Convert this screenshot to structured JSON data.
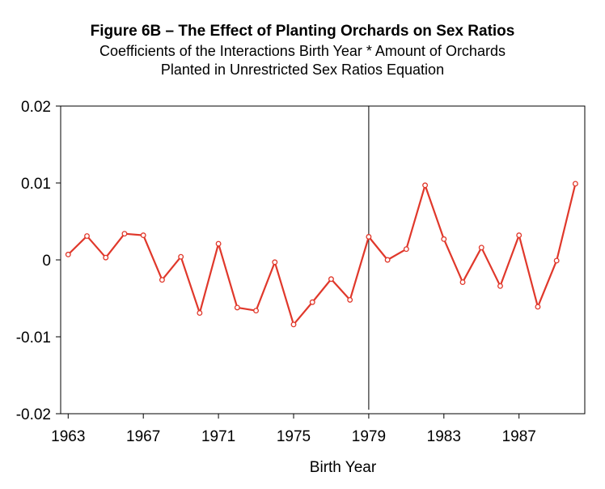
{
  "chart_data": {
    "type": "line",
    "title": "Figure 6B – The Effect of Planting Orchards on Sex Ratios",
    "subtitle_line1": "Coefficients of the Interactions Birth Year * Amount of Orchards",
    "subtitle_line2": "Planted in Unrestricted Sex Ratios Equation",
    "xlabel": "Birth Year",
    "ylabel": "",
    "xlim": [
      1962.6,
      1990.5
    ],
    "ylim": [
      -0.02,
      0.02
    ],
    "x_ticks": [
      1963,
      1967,
      1971,
      1975,
      1979,
      1983,
      1987
    ],
    "x_tick_labels": [
      "1963",
      "1967",
      "1971",
      "1975",
      "1979",
      "1983",
      "1987"
    ],
    "y_ticks": [
      0.02,
      0.01,
      0,
      -0.01,
      -0.02
    ],
    "y_tick_labels": [
      "0.02",
      "0.01",
      "0",
      "-0.01",
      "-0.02"
    ],
    "vertical_line_x": 1979,
    "grid": false,
    "series": [
      {
        "color": "#e0382b",
        "x": [
          1963,
          1964,
          1965,
          1966,
          1967,
          1968,
          1969,
          1970,
          1971,
          1972,
          1973,
          1974,
          1975,
          1976,
          1977,
          1978,
          1979,
          1980,
          1981,
          1982,
          1983,
          1984,
          1985,
          1986,
          1987,
          1988,
          1989,
          1990
        ],
        "values": [
          0.0007,
          0.0031,
          0.0003,
          0.0034,
          0.0032,
          -0.0026,
          0.0004,
          -0.0069,
          0.0021,
          -0.0062,
          -0.0066,
          -0.0003,
          -0.0084,
          -0.0055,
          -0.0025,
          -0.0052,
          0.003,
          0.0,
          0.0014,
          0.0097,
          0.0027,
          -0.0029,
          0.0016,
          -0.0034,
          0.0032,
          -0.0061,
          -0.0001,
          0.0099
        ]
      }
    ]
  }
}
